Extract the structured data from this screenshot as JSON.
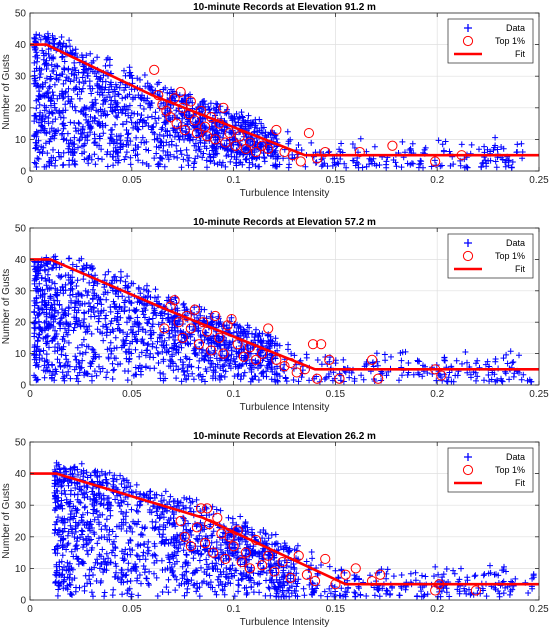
{
  "chart_data": [
    {
      "type": "scatter",
      "title": "10-minute Records at Elevation 91.2 m",
      "xlabel": "Turbulence Intensity",
      "ylabel": "Number of Gusts",
      "xlim": [
        0,
        0.25
      ],
      "ylim": [
        0,
        50
      ],
      "xticks": [
        "0",
        "0.05",
        "0.1",
        "0.15",
        "0.2",
        "0.25"
      ],
      "yticks": [
        "0",
        "10",
        "20",
        "30",
        "40",
        "50"
      ],
      "grid": true,
      "legend": {
        "placement": "top-right",
        "entries": [
          "Data",
          "Top 1%",
          "Fit"
        ]
      },
      "series": [
        {
          "name": "Data",
          "marker": "+",
          "color": "#0000ff",
          "cloud": {
            "x_range": [
              0.002,
              0.245
            ],
            "y_max_at_0": 44,
            "y_min": 1,
            "count_estimate": "thousands"
          }
        },
        {
          "name": "Top 1%",
          "marker": "circle",
          "color": "#ff0000",
          "points": [
            [
              0.061,
              32
            ],
            [
              0.063,
              24
            ],
            [
              0.065,
              21
            ],
            [
              0.067,
              19
            ],
            [
              0.069,
              17
            ],
            [
              0.071,
              23
            ],
            [
              0.072,
              15
            ],
            [
              0.074,
              25
            ],
            [
              0.075,
              20
            ],
            [
              0.076,
              13
            ],
            [
              0.078,
              18
            ],
            [
              0.079,
              22
            ],
            [
              0.081,
              16
            ],
            [
              0.082,
              12
            ],
            [
              0.084,
              19
            ],
            [
              0.086,
              14
            ],
            [
              0.087,
              11
            ],
            [
              0.089,
              17
            ],
            [
              0.091,
              10
            ],
            [
              0.093,
              15
            ],
            [
              0.095,
              20
            ],
            [
              0.096,
              9
            ],
            [
              0.098,
              12
            ],
            [
              0.101,
              8
            ],
            [
              0.103,
              11
            ],
            [
              0.106,
              7
            ],
            [
              0.108,
              9
            ],
            [
              0.111,
              6
            ],
            [
              0.114,
              8
            ],
            [
              0.117,
              7
            ],
            [
              0.121,
              13
            ],
            [
              0.125,
              6
            ],
            [
              0.129,
              5
            ],
            [
              0.133,
              3
            ],
            [
              0.137,
              12
            ],
            [
              0.141,
              4
            ],
            [
              0.145,
              6
            ],
            [
              0.162,
              6
            ],
            [
              0.178,
              8
            ],
            [
              0.199,
              3
            ],
            [
              0.212,
              5
            ]
          ]
        },
        {
          "name": "Fit",
          "line": true,
          "color": "#ff0000",
          "points": [
            [
              0,
              40
            ],
            [
              0.008,
              40
            ],
            [
              0.06,
              24
            ],
            [
              0.135,
              5
            ],
            [
              0.25,
              5
            ]
          ]
        }
      ]
    },
    {
      "type": "scatter",
      "title": "10-minute Records at Elevation 57.2 m",
      "xlabel": "Turbulence Intensity",
      "ylabel": "Number of Gusts",
      "xlim": [
        0,
        0.25
      ],
      "ylim": [
        0,
        50
      ],
      "xticks": [
        "0",
        "0.05",
        "0.1",
        "0.15",
        "0.2",
        "0.25"
      ],
      "yticks": [
        "0",
        "10",
        "20",
        "30",
        "40",
        "50"
      ],
      "grid": true,
      "legend": {
        "placement": "top-right",
        "entries": [
          "Data",
          "Top 1%",
          "Fit"
        ]
      },
      "series": [
        {
          "name": "Data",
          "marker": "+",
          "color": "#0000ff",
          "cloud": {
            "x_range": [
              0.002,
              0.248
            ],
            "y_max_at_0": 41,
            "y_min": 1,
            "count_estimate": "thousands"
          }
        },
        {
          "name": "Top 1%",
          "marker": "circle",
          "color": "#ff0000",
          "points": [
            [
              0.066,
              18
            ],
            [
              0.069,
              25
            ],
            [
              0.071,
              27
            ],
            [
              0.073,
              20
            ],
            [
              0.075,
              15
            ],
            [
              0.077,
              22
            ],
            [
              0.079,
              18
            ],
            [
              0.081,
              24
            ],
            [
              0.083,
              13
            ],
            [
              0.085,
              20
            ],
            [
              0.087,
              17
            ],
            [
              0.089,
              11
            ],
            [
              0.091,
              22
            ],
            [
              0.093,
              15
            ],
            [
              0.095,
              10
            ],
            [
              0.097,
              19
            ],
            [
              0.099,
              21
            ],
            [
              0.102,
              13
            ],
            [
              0.105,
              9
            ],
            [
              0.108,
              12
            ],
            [
              0.111,
              8
            ],
            [
              0.114,
              10
            ],
            [
              0.117,
              18
            ],
            [
              0.121,
              8
            ],
            [
              0.125,
              6
            ],
            [
              0.128,
              7
            ],
            [
              0.131,
              4
            ],
            [
              0.135,
              5
            ],
            [
              0.139,
              13
            ],
            [
              0.141,
              2
            ],
            [
              0.143,
              13
            ],
            [
              0.147,
              8
            ],
            [
              0.152,
              2
            ],
            [
              0.168,
              8
            ],
            [
              0.171,
              2
            ],
            [
              0.199,
              5
            ],
            [
              0.202,
              3
            ]
          ]
        },
        {
          "name": "Fit",
          "line": true,
          "color": "#ff0000",
          "points": [
            [
              0,
              40
            ],
            [
              0.01,
              40
            ],
            [
              0.067,
              24
            ],
            [
              0.14,
              5
            ],
            [
              0.25,
              5
            ]
          ]
        }
      ]
    },
    {
      "type": "scatter",
      "title": "10-minute Records at Elevation 26.2 m",
      "xlabel": "Turbulence Intensity",
      "ylabel": "Number of Gusts",
      "xlim": [
        0,
        0.25
      ],
      "ylim": [
        0,
        50
      ],
      "xticks": [
        "0",
        "0.05",
        "0.1",
        "0.15",
        "0.2",
        "0.25"
      ],
      "yticks": [
        "0",
        "10",
        "20",
        "30",
        "40",
        "50"
      ],
      "grid": true,
      "legend": {
        "placement": "top-right",
        "entries": [
          "Data",
          "Top 1%",
          "Fit"
        ]
      },
      "series": [
        {
          "name": "Data",
          "marker": "+",
          "color": "#0000ff",
          "cloud": {
            "x_range": [
              0.012,
              0.248
            ],
            "y_max_at_0": 45,
            "y_min": 1,
            "count_estimate": "thousands"
          }
        },
        {
          "name": "Top 1%",
          "marker": "circle",
          "color": "#ff0000",
          "points": [
            [
              0.074,
              25
            ],
            [
              0.076,
              20
            ],
            [
              0.079,
              17
            ],
            [
              0.082,
              23
            ],
            [
              0.084,
              29
            ],
            [
              0.086,
              18
            ],
            [
              0.087,
              29
            ],
            [
              0.088,
              24
            ],
            [
              0.09,
              15
            ],
            [
              0.092,
              26
            ],
            [
              0.094,
              21
            ],
            [
              0.096,
              13
            ],
            [
              0.098,
              20
            ],
            [
              0.1,
              17
            ],
            [
              0.102,
              22
            ],
            [
              0.104,
              12
            ],
            [
              0.106,
              15
            ],
            [
              0.108,
              10
            ],
            [
              0.111,
              19
            ],
            [
              0.114,
              11
            ],
            [
              0.117,
              14
            ],
            [
              0.12,
              9
            ],
            [
              0.124,
              12
            ],
            [
              0.128,
              7
            ],
            [
              0.132,
              14
            ],
            [
              0.136,
              8
            ],
            [
              0.14,
              6
            ],
            [
              0.145,
              13
            ],
            [
              0.15,
              5
            ],
            [
              0.155,
              8
            ],
            [
              0.16,
              10
            ],
            [
              0.168,
              6
            ],
            [
              0.172,
              8
            ],
            [
              0.199,
              3
            ],
            [
              0.201,
              5
            ],
            [
              0.219,
              3
            ]
          ]
        },
        {
          "name": "Fit",
          "line": true,
          "color": "#ff0000",
          "points": [
            [
              0,
              40
            ],
            [
              0.013,
              40
            ],
            [
              0.085,
              26
            ],
            [
              0.155,
              5
            ],
            [
              0.25,
              5
            ]
          ]
        }
      ]
    }
  ]
}
